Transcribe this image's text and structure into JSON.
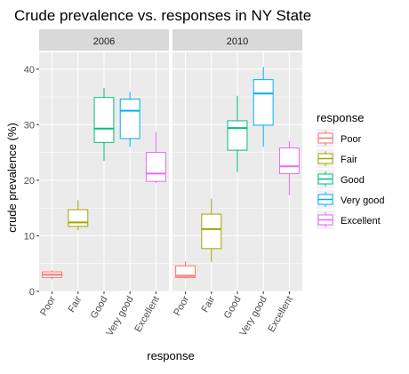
{
  "chart_data": {
    "type": "boxplot",
    "title": "Crude prevalence vs. responses in NY State",
    "xlabel": "response",
    "ylabel": "crude prevalence (%)",
    "ylim": [
      0,
      43
    ],
    "yticks": [
      0,
      10,
      20,
      30,
      40
    ],
    "categories": [
      "Poor",
      "Fair",
      "Good",
      "Very good",
      "Excellent"
    ],
    "facets": [
      {
        "label": "2006",
        "boxes": [
          {
            "category": "Poor",
            "min": 2.2,
            "q1": 2.5,
            "median": 3.0,
            "q3": 3.5,
            "max": 3.8
          },
          {
            "category": "Fair",
            "min": 11.0,
            "q1": 11.7,
            "median": 12.4,
            "q3": 14.7,
            "max": 16.4
          },
          {
            "category": "Good",
            "min": 23.5,
            "q1": 26.8,
            "median": 29.3,
            "q3": 34.9,
            "max": 36.6
          },
          {
            "category": "Very good",
            "min": 26.0,
            "q1": 27.5,
            "median": 32.5,
            "q3": 34.6,
            "max": 35.9
          },
          {
            "category": "Excellent",
            "min": 19.5,
            "q1": 19.8,
            "median": 21.2,
            "q3": 25.0,
            "max": 28.7
          }
        ]
      },
      {
        "label": "2010",
        "boxes": [
          {
            "category": "Poor",
            "min": 2.3,
            "q1": 2.5,
            "median": 2.8,
            "q3": 4.6,
            "max": 5.4
          },
          {
            "category": "Fair",
            "min": 5.3,
            "q1": 7.7,
            "median": 11.2,
            "q3": 13.9,
            "max": 16.7
          },
          {
            "category": "Good",
            "min": 21.5,
            "q1": 25.4,
            "median": 29.4,
            "q3": 30.7,
            "max": 35.2
          },
          {
            "category": "Very good",
            "min": 26.0,
            "q1": 29.9,
            "median": 35.6,
            "q3": 38.1,
            "max": 40.4
          },
          {
            "category": "Excellent",
            "min": 17.3,
            "q1": 21.2,
            "median": 22.5,
            "q3": 25.8,
            "max": 27.0
          }
        ]
      }
    ],
    "legend": {
      "title": "response",
      "position": "right",
      "entries": [
        {
          "label": "Poor",
          "color": "#F8766D"
        },
        {
          "label": "Fair",
          "color": "#A3A500"
        },
        {
          "label": "Good",
          "color": "#00BF7D"
        },
        {
          "label": "Very good",
          "color": "#00B0F6"
        },
        {
          "label": "Excellent",
          "color": "#E76BF3"
        }
      ]
    },
    "colors": {
      "panel_background": "#EBEBEB",
      "strip_background": "#D9D9D9",
      "grid_major": "#FFFFFF",
      "grid_minor": "#F4F4F4",
      "axis_text": "#4D4D4D",
      "strip_text": "#1A1A1A"
    },
    "grid": true
  }
}
